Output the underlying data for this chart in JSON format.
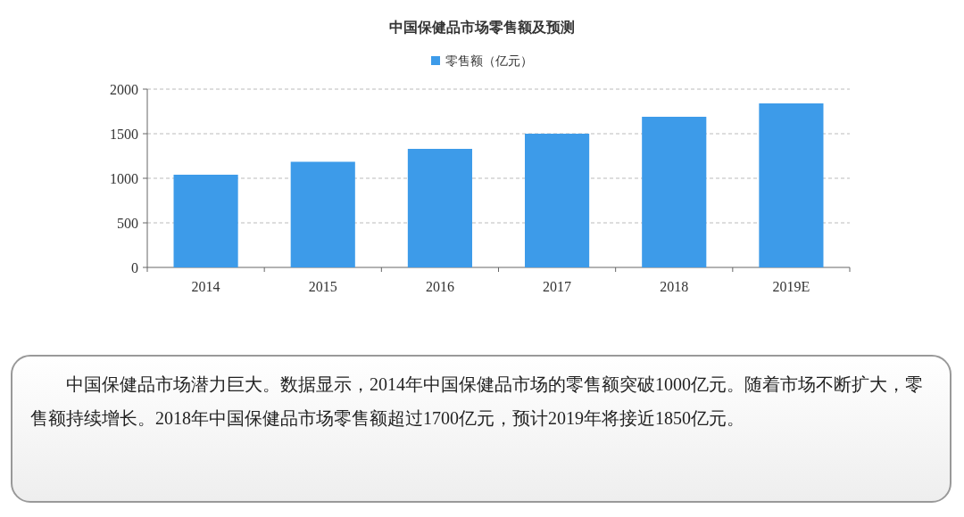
{
  "chart_data": {
    "type": "bar",
    "title": "中国保健品市场零售额及预测",
    "categories": [
      "2014",
      "2015",
      "2016",
      "2017",
      "2018",
      "2019E"
    ],
    "series": [
      {
        "name": "零售额（亿元）",
        "color": "#3d9be9",
        "values": [
          1040,
          1185,
          1330,
          1500,
          1690,
          1840
        ]
      }
    ],
    "ylim": [
      0,
      2000
    ],
    "yticks": [
      0,
      500,
      1000,
      1500,
      2000
    ],
    "grid": "y",
    "legend": "top",
    "annotations": [
      "中国保健品市场潜力巨大。数据显示，2014年中国保健品市场的零售额突破1000亿元。随着市场不断扩大，零售额持续增长。2018年中国保健品市场零售额超过1700亿元，预计2019年将接近1850亿元。"
    ]
  }
}
